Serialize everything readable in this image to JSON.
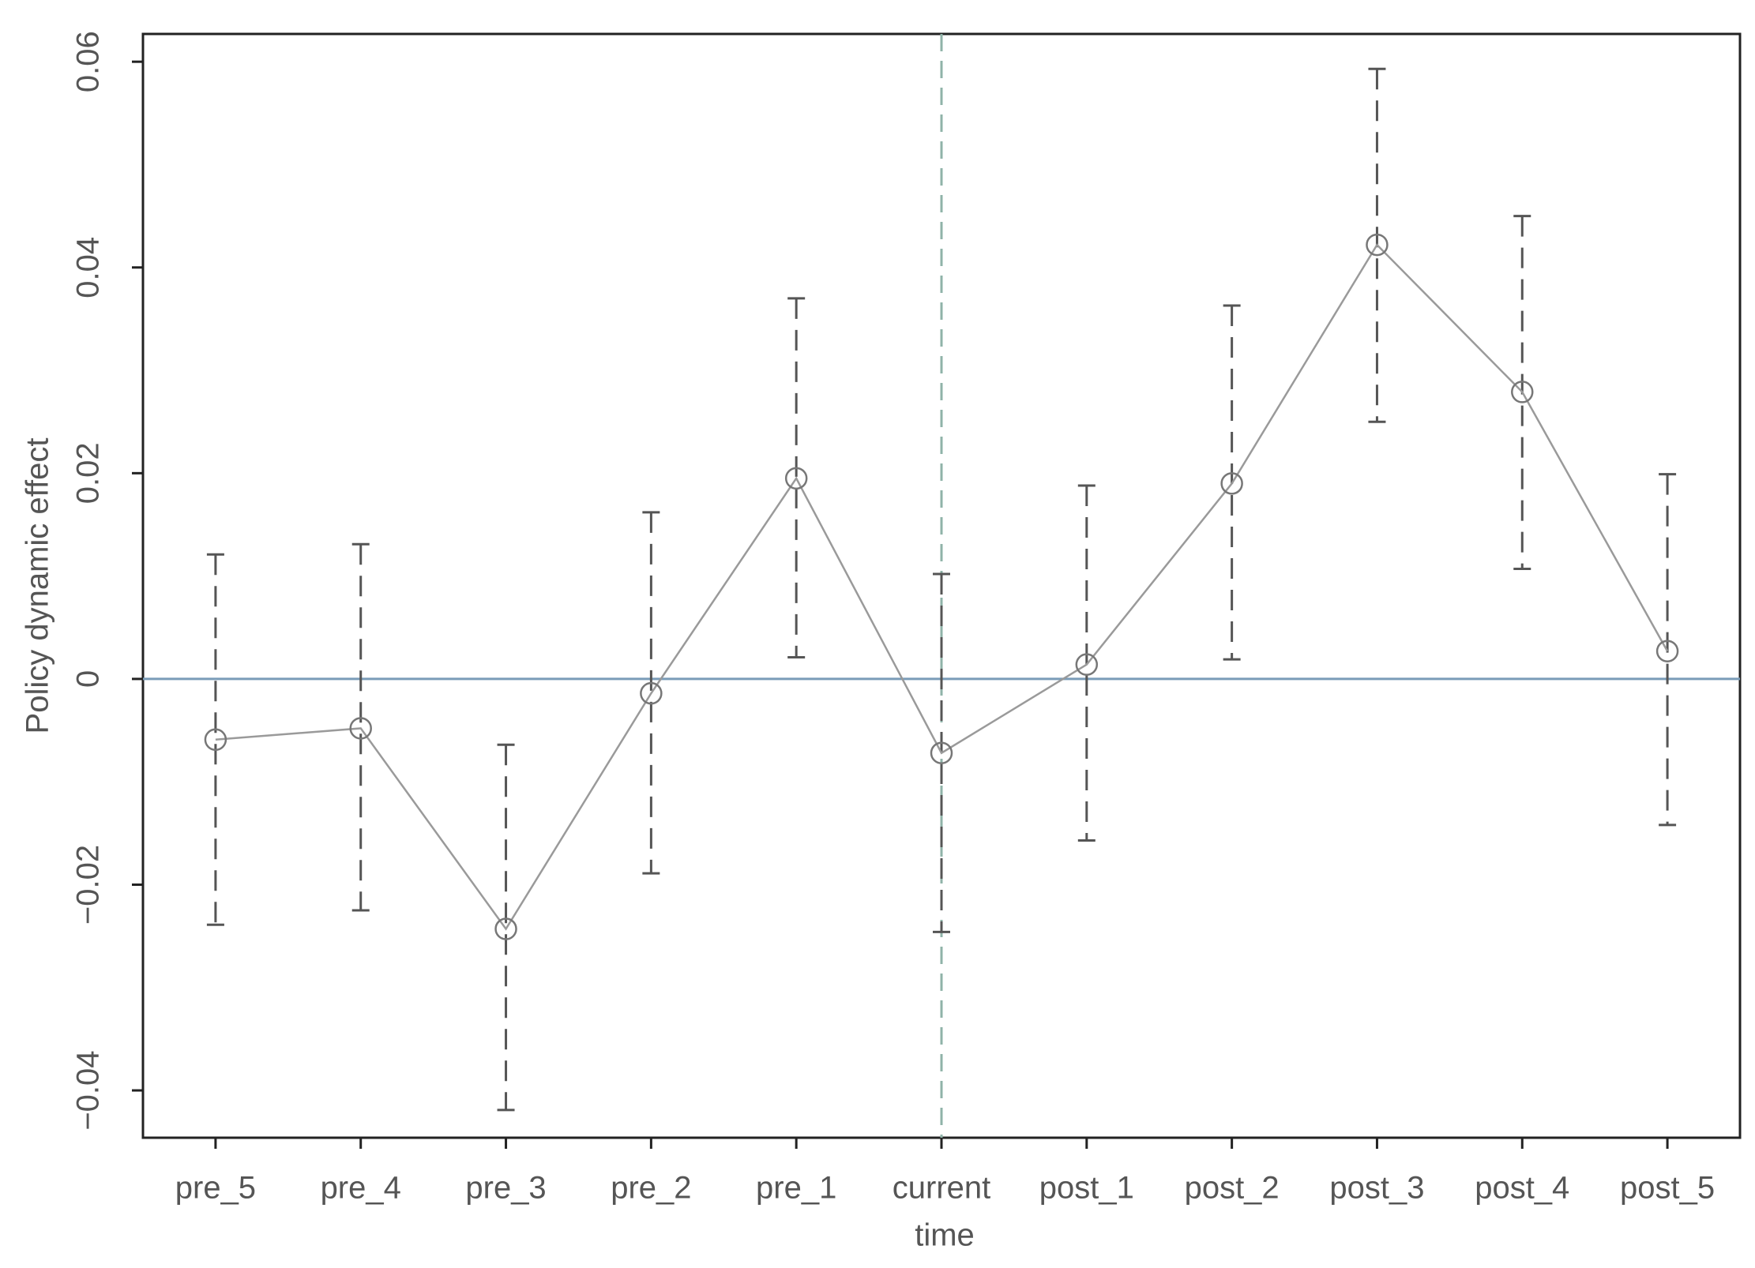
{
  "chart_data": {
    "type": "errorbar-line",
    "x_label": "time",
    "y_label": "Policy dynamic effect",
    "categories": [
      "pre_5",
      "pre_4",
      "pre_3",
      "pre_2",
      "pre_1",
      "current",
      "post_1",
      "post_2",
      "post_3",
      "post_4",
      "post_5"
    ],
    "series": [
      {
        "color": "#9a9a9a",
        "values": [
          -0.0059,
          -0.0048,
          -0.0243,
          -0.0014,
          0.0195,
          -0.0072,
          0.0014,
          0.019,
          0.0422,
          0.0279,
          0.0027
        ],
        "ci_lower": [
          -0.0239,
          -0.0225,
          -0.0419,
          -0.0189,
          0.0021,
          -0.0246,
          -0.0157,
          0.0019,
          0.025,
          0.0107,
          -0.0142
        ],
        "ci_upper": [
          0.0121,
          0.0131,
          -0.0064,
          0.0162,
          0.037,
          0.0102,
          0.0188,
          0.0363,
          0.0593,
          0.045,
          0.0199
        ]
      }
    ],
    "ylim": [
      -0.0446,
      0.0627
    ],
    "yticks": [
      {
        "value": -0.04,
        "label": "−0.04"
      },
      {
        "value": -0.02,
        "label": "−0.02"
      },
      0,
      0.02,
      0.04,
      0.06
    ],
    "hline": 0,
    "hline_color": "#7a9cb8",
    "vline": "current",
    "vline_color": "#8fb3a8",
    "errorbar_color": "#555555"
  }
}
